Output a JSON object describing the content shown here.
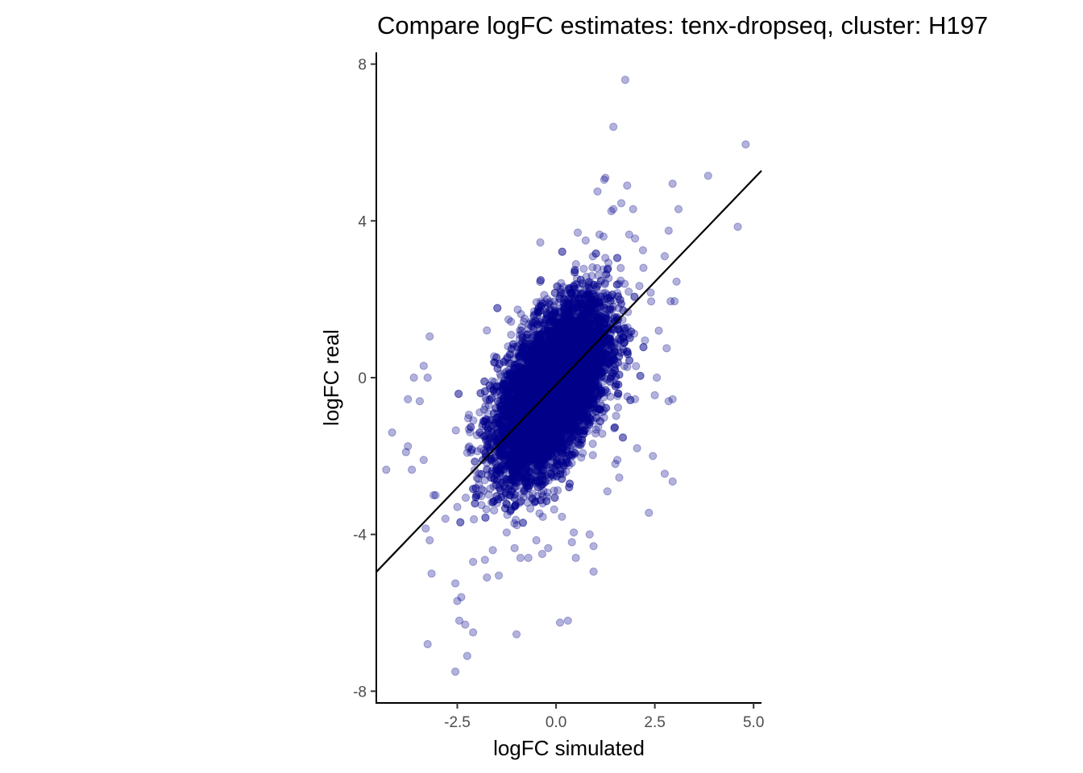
{
  "chart_data": {
    "type": "scatter",
    "title": "Compare logFC estimates: tenx-dropseq, cluster: H197",
    "xlabel": "logFC simulated",
    "ylabel": "logFC real",
    "xlim": [
      -4.55,
      5.2
    ],
    "ylim": [
      -8.3,
      8.3
    ],
    "x_ticks": [
      -2.5,
      0.0,
      2.5,
      5.0
    ],
    "x_tick_labels": [
      "-2.5",
      "0.0",
      "2.5",
      "5.0"
    ],
    "y_ticks": [
      -8,
      -4,
      0,
      4,
      8
    ],
    "y_tick_labels": [
      "-8",
      "-4",
      "0",
      "4",
      "8"
    ],
    "grid": false,
    "point_color": "#00008b",
    "point_opacity": 0.3,
    "fit_line": {
      "slope": 1.05,
      "intercept": -0.18
    },
    "line_color": "#000000",
    "dense_cloud": {
      "description_count": 9000,
      "center": [
        -0.1,
        -0.3
      ],
      "sd": [
        0.7,
        1.1
      ],
      "correlation": 0.55
    },
    "outlier_points": [
      [
        1.75,
        7.6
      ],
      [
        1.45,
        6.4
      ],
      [
        4.8,
        5.95
      ],
      [
        3.85,
        5.15
      ],
      [
        2.95,
        4.95
      ],
      [
        1.25,
        5.1
      ],
      [
        1.22,
        5.05
      ],
      [
        1.8,
        4.9
      ],
      [
        1.05,
        4.75
      ],
      [
        1.65,
        4.45
      ],
      [
        1.45,
        4.3
      ],
      [
        1.4,
        4.25
      ],
      [
        1.95,
        4.3
      ],
      [
        3.1,
        4.3
      ],
      [
        4.6,
        3.85
      ],
      [
        0.55,
        3.7
      ],
      [
        1.1,
        3.65
      ],
      [
        1.2,
        3.6
      ],
      [
        1.85,
        3.65
      ],
      [
        2.0,
        3.55
      ],
      [
        2.85,
        3.75
      ],
      [
        -0.4,
        3.45
      ],
      [
        0.75,
        3.5
      ],
      [
        2.2,
        3.25
      ],
      [
        2.75,
        3.1
      ],
      [
        3.05,
        2.45
      ],
      [
        2.9,
        1.95
      ],
      [
        3.0,
        1.95
      ],
      [
        -3.2,
        1.05
      ],
      [
        -3.25,
        0.0
      ],
      [
        -3.35,
        0.3
      ],
      [
        -3.6,
        0.0
      ],
      [
        -3.75,
        -0.55
      ],
      [
        -3.45,
        -0.6
      ],
      [
        -4.15,
        -1.4
      ],
      [
        -3.75,
        -1.75
      ],
      [
        -3.8,
        -1.9
      ],
      [
        -4.3,
        -2.35
      ],
      [
        -3.65,
        -2.35
      ],
      [
        -3.35,
        -2.1
      ],
      [
        -3.05,
        -3.0
      ],
      [
        -3.1,
        -3.0
      ],
      [
        -3.3,
        -3.85
      ],
      [
        -3.2,
        -4.15
      ],
      [
        -3.15,
        -5.0
      ],
      [
        -2.55,
        -5.25
      ],
      [
        -2.5,
        -5.7
      ],
      [
        -2.4,
        -5.6
      ],
      [
        -2.3,
        -6.3
      ],
      [
        -2.45,
        -6.2
      ],
      [
        -2.1,
        -6.5
      ],
      [
        -3.25,
        -6.8
      ],
      [
        -2.25,
        -7.1
      ],
      [
        -2.55,
        -7.5
      ],
      [
        -1.0,
        -6.55
      ],
      [
        0.1,
        -6.25
      ],
      [
        0.3,
        -6.2
      ],
      [
        0.95,
        -4.95
      ],
      [
        -1.45,
        -5.05
      ],
      [
        -1.75,
        -5.1
      ],
      [
        -1.8,
        -4.65
      ],
      [
        -0.9,
        -4.6
      ],
      [
        -0.7,
        -4.6
      ],
      [
        -0.35,
        -4.5
      ],
      [
        -0.2,
        -4.35
      ],
      [
        0.4,
        -4.2
      ],
      [
        0.5,
        -4.6
      ],
      [
        0.85,
        -4.0
      ],
      [
        0.95,
        -4.3
      ],
      [
        2.35,
        -3.45
      ],
      [
        2.95,
        -2.65
      ],
      [
        2.75,
        -2.45
      ],
      [
        2.45,
        -2.0
      ],
      [
        1.55,
        -2.1
      ],
      [
        1.6,
        -2.55
      ],
      [
        2.85,
        -0.6
      ],
      [
        2.95,
        -0.55
      ],
      [
        2.55,
        0.0
      ],
      [
        2.5,
        -0.45
      ],
      [
        2.0,
        -0.55
      ],
      [
        2.25,
        0.95
      ],
      [
        2.8,
        0.75
      ],
      [
        2.6,
        1.2
      ],
      [
        -2.1,
        -4.7
      ],
      [
        -1.6,
        -4.4
      ],
      [
        -1.25,
        -3.95
      ],
      [
        -1.05,
        -4.35
      ],
      [
        -0.5,
        -4.15
      ],
      [
        -2.8,
        -3.6
      ],
      [
        -2.5,
        -3.3
      ],
      [
        0.45,
        -3.95
      ],
      [
        0.15,
        -3.55
      ],
      [
        1.3,
        -2.9
      ],
      [
        1.5,
        -2.2
      ],
      [
        2.05,
        -1.8
      ]
    ]
  }
}
